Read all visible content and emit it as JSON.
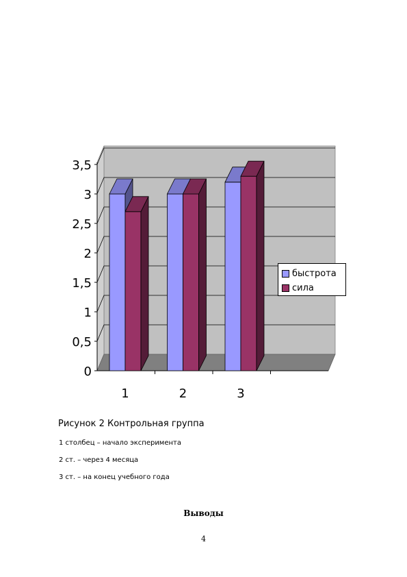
{
  "chart_data": {
    "type": "bar",
    "style": "3d-clustered-column",
    "categories": [
      "1",
      "2",
      "3"
    ],
    "series": [
      {
        "name": "быстрота",
        "values": [
          3.0,
          3.0,
          3.2
        ],
        "color": "#9999ff"
      },
      {
        "name": "сила",
        "values": [
          2.7,
          3.0,
          3.3
        ],
        "color": "#993366"
      }
    ],
    "ylim": [
      0,
      3.5
    ],
    "yticks": [
      "0",
      "0,5",
      "1",
      "1,5",
      "2",
      "2,5",
      "3",
      "3,5"
    ],
    "grid": true,
    "legend_position": "right",
    "wall_color": "#c0c0c0",
    "floor_color": "#808080"
  },
  "caption": "Рисунок 2 Контрольная группа",
  "notes": [
    "1 столбец – начало эксперимента",
    "2 ст. – через 4 месяца",
    "3 ст. – на конец учебного года"
  ],
  "section_heading": "Выводы",
  "page_number": "4"
}
